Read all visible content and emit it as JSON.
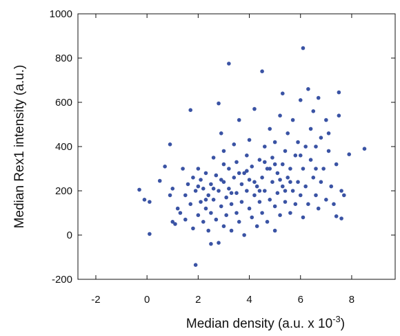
{
  "chart_data": {
    "type": "scatter",
    "x_label": {
      "text": "Median density (a.u. x 10",
      "superscript": "-3",
      "suffix": ")"
    },
    "y_label": "Median Rex1 intensity (a.u.)",
    "color": "#3a53a4",
    "xlim": [
      -2.7,
      9.7
    ],
    "ylim": [
      -200,
      1000
    ],
    "xticks": [
      -2,
      0,
      2,
      4,
      6,
      8
    ],
    "yticks": [
      -200,
      0,
      200,
      400,
      600,
      800,
      1000
    ],
    "x": [
      -0.3,
      -0.1,
      0.1,
      0.1,
      0.5,
      0.7,
      0.9,
      0.9,
      1.0,
      1.1,
      1.2,
      1.3,
      1.4,
      1.5,
      1.5,
      1.6,
      1.7,
      1.7,
      1.8,
      1.8,
      1.9,
      1.9,
      2.0,
      2.0,
      2.1,
      2.1,
      2.2,
      2.2,
      2.3,
      2.3,
      2.4,
      2.4,
      2.5,
      2.5,
      2.5,
      2.6,
      2.6,
      2.7,
      2.7,
      2.8,
      2.8,
      2.8,
      2.9,
      2.9,
      3.0,
      3.0,
      3.0,
      3.1,
      3.1,
      3.2,
      3.2,
      3.2,
      3.3,
      3.3,
      3.4,
      3.4,
      3.5,
      3.5,
      3.5,
      3.6,
      3.6,
      3.7,
      3.7,
      3.8,
      3.8,
      3.9,
      3.9,
      4.0,
      4.0,
      4.0,
      4.1,
      4.1,
      4.2,
      4.2,
      4.3,
      4.3,
      4.4,
      4.4,
      4.5,
      4.5,
      4.5,
      4.6,
      4.6,
      4.7,
      4.7,
      4.8,
      4.8,
      4.9,
      4.9,
      5.0,
      5.0,
      5.0,
      5.1,
      5.1,
      5.2,
      5.2,
      5.3,
      5.3,
      5.3,
      5.4,
      5.4,
      5.5,
      5.5,
      5.6,
      5.6,
      5.7,
      5.7,
      5.8,
      5.8,
      5.9,
      5.9,
      6.0,
      6.0,
      6.1,
      6.1,
      6.1,
      6.2,
      6.2,
      6.3,
      6.3,
      6.4,
      6.4,
      6.5,
      6.5,
      6.6,
      6.6,
      6.7,
      6.7,
      6.8,
      6.8,
      6.9,
      7.0,
      7.0,
      7.1,
      7.1,
      7.2,
      7.3,
      7.4,
      7.4,
      7.5,
      7.5,
      7.6,
      7.6,
      7.7,
      7.9,
      8.5,
      3.0,
      3.6,
      4.2,
      4.8,
      5.4,
      2.0,
      2.6,
      3.3,
      4.4,
      5.0,
      5.6,
      6.0,
      4.6,
      3.9,
      2.3,
      6.6,
      1.0,
      2.9,
      5.2
    ],
    "values": [
      205,
      160,
      150,
      5,
      245,
      310,
      410,
      180,
      60,
      50,
      120,
      100,
      300,
      180,
      70,
      230,
      565,
      140,
      30,
      260,
      -135,
      200,
      90,
      300,
      150,
      250,
      60,
      210,
      120,
      280,
      180,
      20,
      -40,
      100,
      230,
      350,
      160,
      70,
      270,
      -35,
      595,
      200,
      130,
      460,
      40,
      240,
      380,
      170,
      90,
      775,
      300,
      210,
      140,
      20,
      260,
      410,
      190,
      100,
      330,
      520,
      60,
      230,
      150,
      280,
      0,
      200,
      360,
      120,
      250,
      430,
      80,
      310,
      180,
      570,
      220,
      40,
      340,
      150,
      740,
      260,
      100,
      400,
      200,
      300,
      60,
      160,
      480,
      240,
      350,
      130,
      20,
      420,
      280,
      190,
      540,
      90,
      640,
      320,
      220,
      150,
      380,
      260,
      460,
      100,
      300,
      200,
      520,
      360,
      140,
      420,
      240,
      180,
      610,
      845,
      300,
      80,
      400,
      220,
      660,
      140,
      340,
      480,
      260,
      560,
      180,
      400,
      120,
      620,
      240,
      440,
      300,
      160,
      520,
      380,
      460,
      220,
      140,
      85,
      320,
      645,
      540,
      75,
      200,
      180,
      365,
      390,
      320,
      280,
      240,
      300,
      200,
      220,
      210,
      190,
      200,
      320,
      240,
      360,
      330,
      290,
      160,
      300,
      210,
      250,
      250
    ]
  }
}
